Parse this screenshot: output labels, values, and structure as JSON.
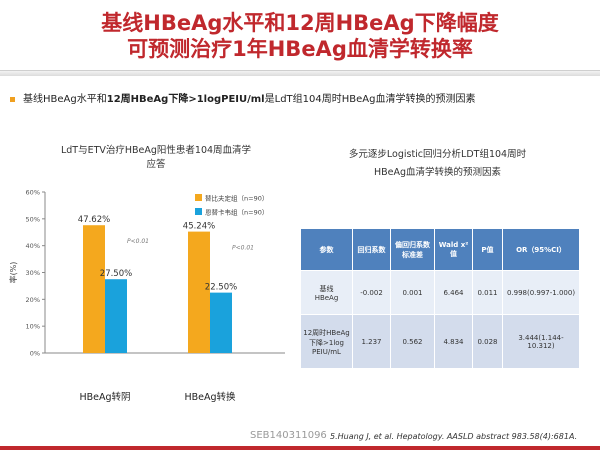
{
  "title": {
    "line1": "基线HBeAg水平和12周HBeAg下降幅度",
    "line2": "可预测治疗1年HBeAg血清学转换率"
  },
  "bullet": {
    "part1": "基线HBeAg水平和",
    "bold": "12周HBeAg下降>1logPEIU/ml",
    "part2": "是LdT组104周时HBeAg血清学转换的预测因素"
  },
  "chart_title": {
    "line1": "LdT与ETV治疗HBeAg阳性患者104周血清学",
    "line2": "应答"
  },
  "chart_data": {
    "type": "bar",
    "categories": [
      "HBeAg转阴",
      "HBeAg转换"
    ],
    "series": [
      {
        "name": "替比夫定组（n=90）",
        "values": [
          47.62,
          45.24
        ],
        "labels": [
          "47.62%",
          "45.24%"
        ],
        "color": "#f4a81e"
      },
      {
        "name": "恩替卡韦组（n=90）",
        "values": [
          27.5,
          22.5
        ],
        "labels": [
          "27.50%",
          "22.50%"
        ],
        "color": "#1aa2dc"
      }
    ],
    "ylabel": "率(%)",
    "ylim": [
      0,
      60
    ],
    "yticks": [
      "0%",
      "10%",
      "20%",
      "30%",
      "40%",
      "50%",
      "60%"
    ],
    "annotations": [
      "P<0.01",
      "P<0.01"
    ],
    "grid": false,
    "legend": "top-right"
  },
  "table_title": {
    "line1": "多元逐步Logistic回归分析LDT组104周时",
    "line2": "HBeAg血清学转换的预测因素"
  },
  "table": {
    "headers": [
      "参数",
      "回归系数",
      "偏回归系数标准差",
      "Wald x²值",
      "P值",
      "OR（95%CI）"
    ],
    "rows": [
      [
        "基线\nHBeAg",
        "-0.002",
        "0.001",
        "6.464",
        "0.011",
        "0.998(0.997-1.000)"
      ],
      [
        "12周时HBeAg\n下降>1log\nPEIU/mL",
        "1.237",
        "0.562",
        "4.834",
        "0.028",
        "3.444(1.144-10.312)"
      ]
    ]
  },
  "citation": "5.Huang J, et al. Hepatology. AASLD abstract 983.58(4):681A.",
  "code": "SEB140311096",
  "colors": {
    "title": "#c0282d",
    "accent": "#f0a020",
    "table_header": "#4f81bd"
  }
}
